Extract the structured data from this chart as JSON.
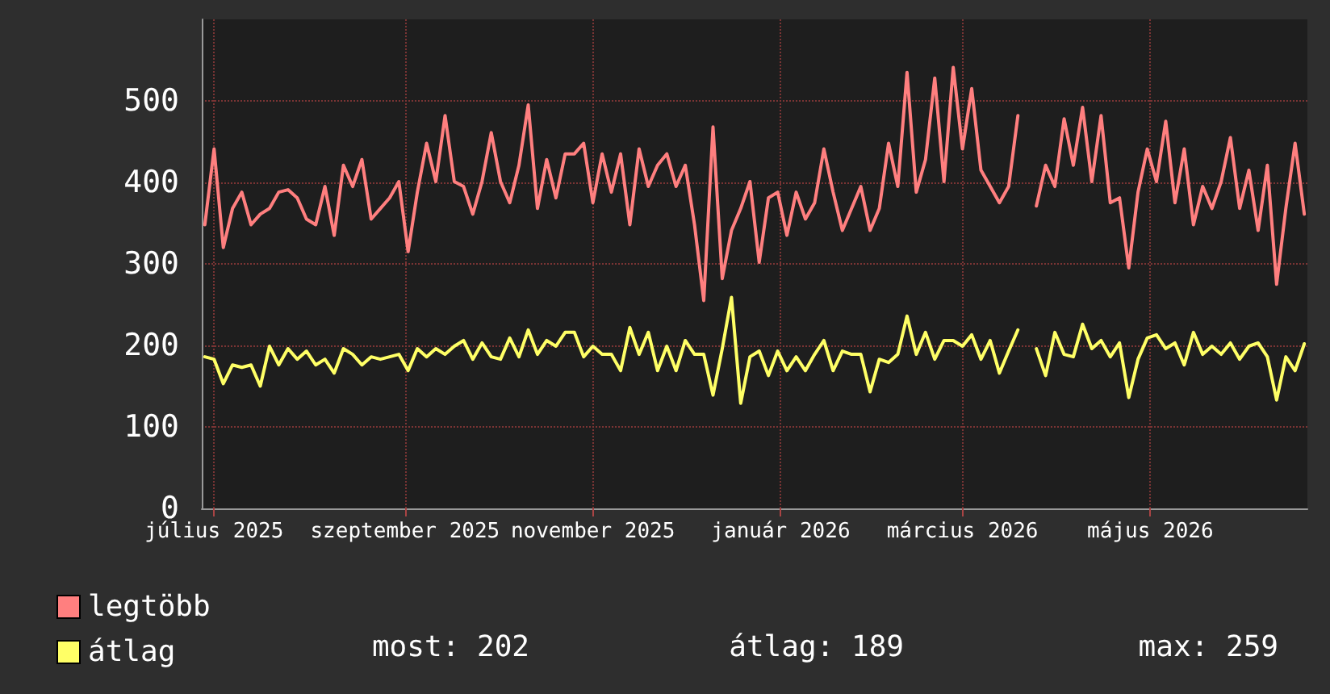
{
  "chart_data": {
    "type": "line",
    "x": [
      "2025-06-28",
      "2025-07-01",
      "2025-07-04",
      "2025-07-07",
      "2025-07-10",
      "2025-07-13",
      "2025-07-16",
      "2025-07-19",
      "2025-07-22",
      "2025-07-25",
      "2025-07-28",
      "2025-07-31",
      "2025-08-03",
      "2025-08-06",
      "2025-08-09",
      "2025-08-12",
      "2025-08-15",
      "2025-08-18",
      "2025-08-21",
      "2025-08-24",
      "2025-08-27",
      "2025-08-30",
      "2025-09-02",
      "2025-09-05",
      "2025-09-08",
      "2025-09-11",
      "2025-09-14",
      "2025-09-17",
      "2025-09-20",
      "2025-09-23",
      "2025-09-26",
      "2025-09-29",
      "2025-10-02",
      "2025-10-05",
      "2025-10-08",
      "2025-10-11",
      "2025-10-14",
      "2025-10-17",
      "2025-10-20",
      "2025-10-23",
      "2025-10-26",
      "2025-10-29",
      "2025-11-01",
      "2025-11-04",
      "2025-11-07",
      "2025-11-10",
      "2025-11-13",
      "2025-11-16",
      "2025-11-19",
      "2025-11-22",
      "2025-11-25",
      "2025-11-28",
      "2025-12-01",
      "2025-12-04",
      "2025-12-07",
      "2025-12-10",
      "2025-12-13",
      "2025-12-16",
      "2025-12-19",
      "2025-12-22",
      "2025-12-25",
      "2025-12-28",
      "2025-12-31",
      "2026-01-03",
      "2026-01-06",
      "2026-01-09",
      "2026-01-12",
      "2026-01-15",
      "2026-01-18",
      "2026-01-21",
      "2026-01-24",
      "2026-01-27",
      "2026-01-30",
      "2026-02-02",
      "2026-02-05",
      "2026-02-08",
      "2026-02-11",
      "2026-02-14",
      "2026-02-17",
      "2026-02-20",
      "2026-02-23",
      "2026-02-26",
      "2026-03-01",
      "2026-03-04",
      "2026-03-07",
      "2026-03-10",
      "2026-03-13",
      "2026-03-16",
      "2026-03-19",
      "2026-03-22",
      "2026-03-25",
      "2026-03-28",
      "2026-03-31",
      "2026-04-03",
      "2026-04-06",
      "2026-04-09",
      "2026-04-12",
      "2026-04-15",
      "2026-04-18",
      "2026-04-21",
      "2026-04-24",
      "2026-04-27",
      "2026-04-30",
      "2026-05-03",
      "2026-05-06",
      "2026-05-09",
      "2026-05-12",
      "2026-05-15",
      "2026-05-18",
      "2026-05-21",
      "2026-05-24",
      "2026-05-27",
      "2026-05-30",
      "2026-06-02",
      "2026-06-05",
      "2026-06-08",
      "2026-06-11",
      "2026-06-14",
      "2026-06-17",
      "2026-06-20"
    ],
    "series": [
      {
        "name": "legtöbb",
        "color": "#ff7f7f",
        "values": [
          348,
          441,
          320,
          368,
          388,
          348,
          361,
          368,
          388,
          391,
          381,
          355,
          348,
          395,
          335,
          421,
          395,
          428,
          355,
          368,
          381,
          401,
          315,
          388,
          448,
          401,
          482,
          401,
          395,
          361,
          401,
          461,
          401,
          375,
          421,
          495,
          368,
          428,
          381,
          435,
          435,
          448,
          375,
          435,
          388,
          435,
          348,
          441,
          395,
          421,
          435,
          395,
          421,
          348,
          255,
          468,
          282,
          341,
          368,
          401,
          302,
          381,
          388,
          335,
          388,
          355,
          375,
          441,
          388,
          341,
          368,
          395,
          341,
          368,
          448,
          395,
          535,
          388,
          428,
          528,
          401,
          541,
          441,
          515,
          415,
          395,
          375,
          395,
          482,
          null,
          371,
          421,
          395,
          478,
          421,
          492,
          401,
          482,
          375,
          381,
          295,
          388,
          441,
          401,
          475,
          375,
          441,
          348,
          395,
          368,
          401,
          455,
          368,
          415,
          341,
          421,
          275,
          368,
          448,
          361
        ]
      },
      {
        "name": "átlag",
        "color": "#ffff66",
        "values": [
          186,
          183,
          153,
          176,
          173,
          176,
          150,
          199,
          176,
          196,
          183,
          193,
          176,
          183,
          166,
          196,
          189,
          176,
          186,
          183,
          186,
          189,
          169,
          196,
          186,
          196,
          189,
          199,
          206,
          183,
          203,
          186,
          183,
          209,
          186,
          219,
          189,
          206,
          199,
          216,
          216,
          186,
          199,
          189,
          189,
          169,
          222,
          189,
          216,
          169,
          199,
          169,
          206,
          189,
          189,
          139,
          196,
          259,
          129,
          186,
          193,
          163,
          193,
          169,
          186,
          169,
          189,
          206,
          169,
          193,
          189,
          189,
          143,
          183,
          179,
          189,
          236,
          189,
          216,
          183,
          206,
          206,
          199,
          213,
          183,
          206,
          166,
          193,
          219,
          null,
          196,
          163,
          216,
          189,
          186,
          226,
          196,
          206,
          186,
          203,
          136,
          183,
          209,
          213,
          196,
          203,
          176,
          216,
          189,
          199,
          189,
          203,
          183,
          199,
          203,
          186,
          133,
          186,
          169,
          202
        ]
      }
    ],
    "xlim": [
      "2025-06-27",
      "2026-06-21"
    ],
    "xticks": [
      {
        "value": "2025-07-01",
        "label": "július 2025"
      },
      {
        "value": "2025-09-01",
        "label": "szeptember 2025"
      },
      {
        "value": "2025-11-01",
        "label": "november 2025"
      },
      {
        "value": "2026-01-01",
        "label": "január 2026"
      },
      {
        "value": "2026-03-01",
        "label": "március 2026"
      },
      {
        "value": "2026-05-01",
        "label": "május 2026"
      }
    ],
    "ylim": [
      0,
      600
    ],
    "yticks": [
      0,
      100,
      200,
      300,
      400,
      500
    ],
    "grid": true,
    "legend": "bottom left",
    "marker": "none",
    "line_style": "solid",
    "annotations": [
      "most: 202",
      "átlag: 189",
      "max: 259"
    ]
  }
}
